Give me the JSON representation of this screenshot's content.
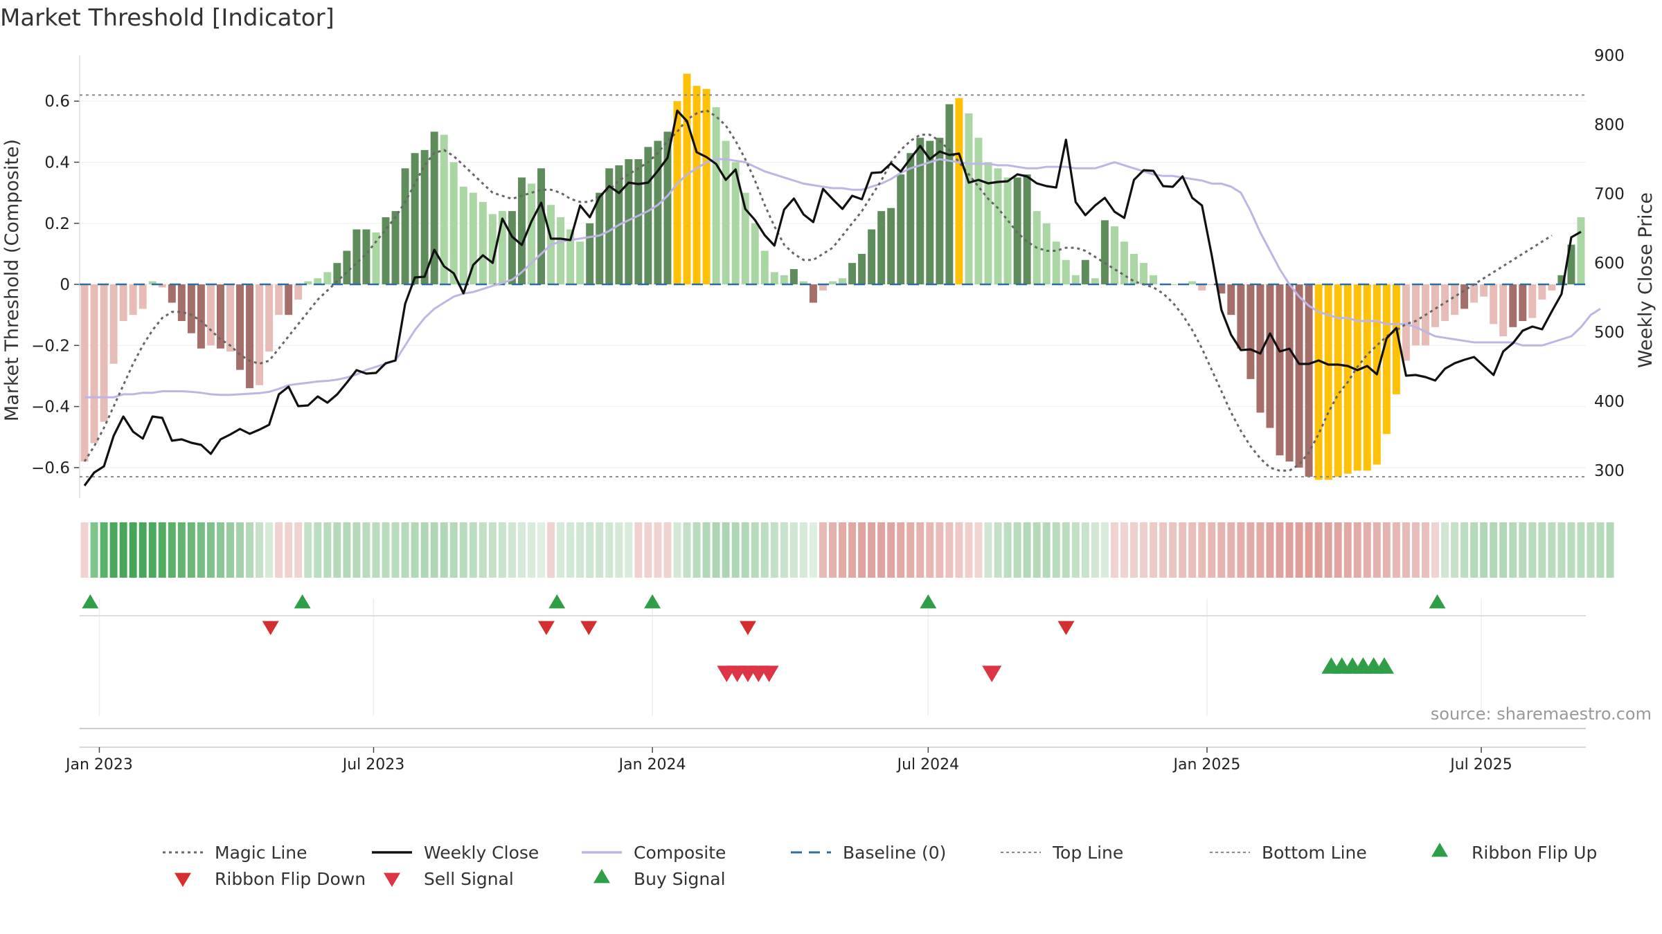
{
  "title": "Market Threshold [Indicator]",
  "source": "source: sharemaestro.com",
  "colors": {
    "pos_strong": "#5e8c5a",
    "pos_light": "#a9d6a2",
    "neg_strong": "#a56e69",
    "neg_light": "#e8bcb6",
    "extreme": "#ffc107",
    "magic_line": "#666666",
    "weekly_close": "#111111",
    "composite": "#bdb6e4",
    "baseline": "#2c6f9e",
    "buy": "#2e9e47",
    "sell": "#dc3545",
    "flip_down": "#d32f2f",
    "flip_up": "#2e9e47"
  },
  "chart_data": {
    "type": "bar",
    "title": "Market Threshold [Indicator]",
    "ylabel": "Market Threshold (Composite)",
    "y2label": "Weekly Close Price",
    "ylim": [
      -0.7,
      0.75
    ],
    "y2lim": [
      260,
      900
    ],
    "yticks": [
      -0.6,
      -0.4,
      -0.2,
      0,
      0.2,
      0.4,
      0.6
    ],
    "ytick_labels": [
      "−0.6",
      "−0.4",
      "−0.2",
      "0",
      "0.2",
      "0.4",
      "0.6"
    ],
    "y2ticks": [
      300,
      400,
      500,
      600,
      700,
      800,
      900
    ],
    "y2tick_labels": [
      "300",
      "400",
      "500",
      "600",
      "700",
      "800",
      "900"
    ],
    "x_start": "2022-12-19",
    "x_end": "2025-09-08",
    "xticks": [
      "2023-01-01",
      "2023-07-01",
      "2024-01-01",
      "2024-07-01",
      "2025-01-01",
      "2025-07-01"
    ],
    "xtick_labels": [
      "Jan 2023",
      "Jul 2023",
      "Jan 2024",
      "Jul 2024",
      "Jan 2025",
      "Jul 2025"
    ],
    "top_line": 0.62,
    "bottom_line": -0.63,
    "baseline": 0,
    "composite_bars": [
      -0.58,
      -0.52,
      -0.45,
      -0.26,
      -0.12,
      -0.1,
      -0.08,
      0.01,
      -0.01,
      -0.06,
      -0.12,
      -0.16,
      -0.21,
      -0.2,
      -0.21,
      -0.22,
      -0.28,
      -0.34,
      -0.33,
      -0.22,
      -0.1,
      -0.1,
      -0.05,
      0.01,
      0.02,
      0.04,
      0.07,
      0.11,
      0.18,
      0.18,
      0.17,
      0.22,
      0.24,
      0.38,
      0.43,
      0.44,
      0.5,
      0.49,
      0.4,
      0.32,
      0.3,
      0.27,
      0.23,
      0.24,
      0.24,
      0.35,
      0.33,
      0.38,
      0.26,
      0.22,
      0.18,
      0.14,
      0.2,
      0.3,
      0.38,
      0.39,
      0.41,
      0.41,
      0.45,
      0.47,
      0.5,
      0.6,
      0.69,
      0.65,
      0.64,
      0.58,
      0.47,
      0.4,
      0.3,
      0.2,
      0.11,
      0.04,
      0.03,
      0.05,
      0.01,
      -0.06,
      -0.02,
      0.01,
      0.02,
      0.07,
      0.1,
      0.18,
      0.24,
      0.25,
      0.36,
      0.43,
      0.48,
      0.47,
      0.48,
      0.59,
      0.61,
      0.56,
      0.48,
      0.4,
      0.38,
      0.35,
      0.35,
      0.36,
      0.24,
      0.2,
      0.14,
      0.08,
      0.03,
      0.08,
      0.02,
      0.21,
      0.19,
      0.14,
      0.1,
      0.07,
      0.03,
      0,
      0,
      0,
      0.01,
      -0.02,
      0,
      -0.03,
      -0.1,
      -0.21,
      -0.31,
      -0.42,
      -0.47,
      -0.56,
      -0.58,
      -0.6,
      -0.63,
      -0.64,
      -0.64,
      -0.63,
      -0.62,
      -0.61,
      -0.61,
      -0.59,
      -0.49,
      -0.36,
      -0.25,
      -0.2,
      -0.2,
      -0.14,
      -0.12,
      -0.1,
      -0.08,
      -0.06,
      -0.04,
      -0.13,
      -0.17,
      -0.14,
      -0.12,
      -0.11,
      -0.05,
      -0.02,
      0.03,
      0.13,
      0.22
    ],
    "bar_class": [
      "nl",
      "nl",
      "nl",
      "nl",
      "nl",
      "nl",
      "nl",
      "pl",
      "nl",
      "ns",
      "ns",
      "ns",
      "ns",
      "nl",
      "ns",
      "nl",
      "ns",
      "ns",
      "nl",
      "nl",
      "nl",
      "ns",
      "nl",
      "pl",
      "pl",
      "pl",
      "ps",
      "ps",
      "ps",
      "ps",
      "pl",
      "ps",
      "ps",
      "ps",
      "ps",
      "ps",
      "ps",
      "pl",
      "pl",
      "pl",
      "pl",
      "pl",
      "pl",
      "pl",
      "ps",
      "ps",
      "pl",
      "ps",
      "pl",
      "pl",
      "pl",
      "pl",
      "ps",
      "ps",
      "ps",
      "ps",
      "ps",
      "ps",
      "ps",
      "ps",
      "ps",
      "e",
      "e",
      "e",
      "e",
      "pl",
      "pl",
      "pl",
      "pl",
      "pl",
      "pl",
      "pl",
      "pl",
      "ps",
      "pl",
      "ns",
      "nl",
      "pl",
      "pl",
      "ps",
      "ps",
      "ps",
      "ps",
      "ps",
      "ps",
      "ps",
      "ps",
      "ps",
      "ps",
      "ps",
      "e",
      "pl",
      "pl",
      "pl",
      "pl",
      "pl",
      "ps",
      "ps",
      "pl",
      "pl",
      "pl",
      "pl",
      "pl",
      "ps",
      "pl",
      "ps",
      "pl",
      "pl",
      "pl",
      "pl",
      "pl",
      "pl",
      "pl",
      "pl",
      "pl",
      "nl",
      "nl",
      "ns",
      "ns",
      "ns",
      "ns",
      "ns",
      "ns",
      "ns",
      "ns",
      "ns",
      "ns",
      "e",
      "e",
      "e",
      "e",
      "e",
      "e",
      "e",
      "e",
      "e",
      "nl",
      "nl",
      "nl",
      "nl",
      "nl",
      "nl",
      "ns",
      "nl",
      "nl",
      "nl",
      "nl",
      "ns",
      "ns",
      "nl",
      "nl",
      "nl",
      "ps",
      "ps",
      "pl",
      "pl",
      "ps"
    ],
    "series": [
      {
        "name": "Magic Line",
        "axis": "left",
        "values": [
          -0.58,
          -0.53,
          -0.47,
          -0.4,
          -0.33,
          -0.26,
          -0.2,
          -0.15,
          -0.11,
          -0.09,
          -0.09,
          -0.1,
          -0.12,
          -0.15,
          -0.18,
          -0.2,
          -0.23,
          -0.25,
          -0.26,
          -0.25,
          -0.21,
          -0.17,
          -0.13,
          -0.09,
          -0.05,
          -0.02,
          0.01,
          0.04,
          0.07,
          0.1,
          0.14,
          0.18,
          0.22,
          0.27,
          0.33,
          0.39,
          0.43,
          0.44,
          0.42,
          0.39,
          0.36,
          0.33,
          0.3,
          0.29,
          0.28,
          0.29,
          0.3,
          0.31,
          0.31,
          0.3,
          0.28,
          0.27,
          0.27,
          0.29,
          0.31,
          0.34,
          0.36,
          0.38,
          0.4,
          0.43,
          0.47,
          0.5,
          0.54,
          0.56,
          0.57,
          0.55,
          0.52,
          0.47,
          0.41,
          0.34,
          0.26,
          0.19,
          0.13,
          0.1,
          0.08,
          0.08,
          0.1,
          0.12,
          0.16,
          0.2,
          0.24,
          0.29,
          0.34,
          0.4,
          0.44,
          0.47,
          0.49,
          0.49,
          0.47,
          0.44,
          0.4,
          0.36,
          0.32,
          0.28,
          0.25,
          0.21,
          0.17,
          0.14,
          0.12,
          0.11,
          0.11,
          0.12,
          0.12,
          0.11,
          0.09,
          0.07,
          0.05,
          0.03,
          0.01,
          0,
          -0.01,
          -0.03,
          -0.06,
          -0.1,
          -0.15,
          -0.21,
          -0.28,
          -0.35,
          -0.42,
          -0.48,
          -0.53,
          -0.57,
          -0.6,
          -0.61,
          -0.61,
          -0.59,
          -0.55,
          -0.49,
          -0.42,
          -0.36,
          -0.32,
          -0.27,
          -0.23,
          -0.2,
          -0.17,
          -0.15,
          -0.13,
          -0.12,
          -0.1,
          -0.08,
          -0.06,
          -0.04,
          -0.02,
          0,
          0.02,
          0.04,
          0.06,
          0.08,
          0.1,
          0.12,
          0.14,
          0.16
        ]
      },
      {
        "name": "Weekly Close",
        "axis": "right",
        "values": [
          278,
          297,
          306,
          350,
          378,
          356,
          346,
          378,
          376,
          343,
          345,
          340,
          337,
          324,
          345,
          352,
          360,
          353,
          359,
          366,
          410,
          421,
          393,
          394,
          407,
          398,
          410,
          427,
          445,
          440,
          441,
          455,
          459,
          541,
          579,
          580,
          619,
          595,
          585,
          556,
          597,
          611,
          600,
          664,
          638,
          626,
          660,
          687,
          635,
          635,
          633,
          683,
          666,
          695,
          711,
          701,
          716,
          714,
          716,
          733,
          752,
          820,
          805,
          760,
          753,
          743,
          720,
          735,
          678,
          662,
          640,
          625,
          677,
          693,
          670,
          659,
          707,
          692,
          678,
          697,
          692,
          730,
          731,
          744,
          732,
          751,
          769,
          750,
          761,
          756,
          758,
          716,
          720,
          715,
          717,
          718,
          728,
          725,
          715,
          711,
          709,
          778,
          688,
          669,
          683,
          694,
          674,
          665,
          720,
          734,
          733,
          711,
          710,
          725,
          694,
          683,
          611,
          532,
          496,
          474,
          475,
          469,
          498,
          472,
          476,
          454,
          454,
          459,
          453,
          453,
          451,
          445,
          451,
          439,
          491,
          506,
          437,
          438,
          435,
          430,
          447,
          455,
          460,
          464,
          451,
          438,
          472,
          484,
          502,
          508,
          504,
          530,
          555,
          637,
          645
        ]
      },
      {
        "name": "Composite",
        "axis": "left",
        "values": [
          -0.37,
          -0.37,
          -0.37,
          -0.37,
          -0.36,
          -0.36,
          -0.355,
          -0.355,
          -0.35,
          -0.35,
          -0.35,
          -0.352,
          -0.355,
          -0.36,
          -0.362,
          -0.362,
          -0.36,
          -0.358,
          -0.356,
          -0.352,
          -0.342,
          -0.33,
          -0.326,
          -0.322,
          -0.318,
          -0.316,
          -0.312,
          -0.305,
          -0.295,
          -0.28,
          -0.27,
          -0.26,
          -0.25,
          -0.2,
          -0.15,
          -0.11,
          -0.08,
          -0.06,
          -0.04,
          -0.03,
          -0.025,
          -0.015,
          -0.005,
          0.005,
          0.015,
          0.04,
          0.07,
          0.1,
          0.13,
          0.14,
          0.145,
          0.15,
          0.155,
          0.16,
          0.175,
          0.195,
          0.21,
          0.225,
          0.24,
          0.26,
          0.29,
          0.33,
          0.36,
          0.38,
          0.4,
          0.41,
          0.41,
          0.405,
          0.4,
          0.385,
          0.37,
          0.36,
          0.35,
          0.34,
          0.33,
          0.325,
          0.32,
          0.315,
          0.315,
          0.31,
          0.31,
          0.32,
          0.33,
          0.345,
          0.365,
          0.38,
          0.39,
          0.4,
          0.41,
          0.405,
          0.4,
          0.395,
          0.395,
          0.395,
          0.39,
          0.39,
          0.385,
          0.38,
          0.38,
          0.385,
          0.385,
          0.385,
          0.38,
          0.38,
          0.38,
          0.39,
          0.4,
          0.39,
          0.38,
          0.37,
          0.36,
          0.355,
          0.355,
          0.35,
          0.345,
          0.34,
          0.33,
          0.33,
          0.32,
          0.3,
          0.24,
          0.17,
          0.11,
          0.05,
          0.0,
          -0.04,
          -0.07,
          -0.09,
          -0.1,
          -0.11,
          -0.11,
          -0.12,
          -0.12,
          -0.12,
          -0.13,
          -0.13,
          -0.13,
          -0.14,
          -0.155,
          -0.17,
          -0.175,
          -0.18,
          -0.185,
          -0.19,
          -0.19,
          -0.19,
          -0.19,
          -0.19,
          -0.2,
          -0.2,
          -0.2,
          -0.19,
          -0.18,
          -0.17,
          -0.14,
          -0.1,
          -0.08
        ]
      }
    ],
    "ribbon": [
      "#f0d2d0",
      "#7fc48a",
      "#58b268",
      "#4aa85c",
      "#48a75a",
      "#46a657",
      "#48a75a",
      "#4caa5e",
      "#52ad63",
      "#5bb06a",
      "#62b470",
      "#6cb879",
      "#76bd82",
      "#7fc18a",
      "#8bc794",
      "#96cc9f",
      "#a3d2aa",
      "#b3d9b8",
      "#c5e1c8",
      "#d6ead8",
      "#f0d2d0",
      "#f0d2d0",
      "#f0d2d0",
      "#c3e1c7",
      "#bcdec0",
      "#b7dbbb",
      "#b5dab9",
      "#b3d9b7",
      "#b5dab9",
      "#b7dbbb",
      "#b8dcbc",
      "#b8dcbc",
      "#b8dcbc",
      "#b5dab9",
      "#b1d8b5",
      "#aed7b3",
      "#afd7b4",
      "#b1d8b5",
      "#b4d9b8",
      "#b8dcbc",
      "#bcdec0",
      "#c0dfc3",
      "#c4e1c7",
      "#c9e4cc",
      "#cfe7d2",
      "#d4e9d7",
      "#d9ecdc",
      "#dff0e2",
      "#f0d2d0",
      "#d6eada",
      "#d2e8d6",
      "#cfe7d3",
      "#cde6d1",
      "#cde6d1",
      "#cfe7d3",
      "#d3e9d6",
      "#d9ecdc",
      "#f0d2d0",
      "#f0d2d0",
      "#f0d2d0",
      "#f0d2d0",
      "#d3e9d6",
      "#c4e1c7",
      "#b8dcbc",
      "#b0d8b5",
      "#acd6b1",
      "#acd6b1",
      "#aed7b3",
      "#b2d9b7",
      "#b7dbbb",
      "#bcdec0",
      "#c2e0c5",
      "#c8e3cb",
      "#cfe7d2",
      "#d6eada",
      "#ddefdf",
      "#e8b9b5",
      "#e5b1ac",
      "#e3aba6",
      "#e1a7a2",
      "#e0a4a0",
      "#dfa39f",
      "#dfa39f",
      "#e0a5a1",
      "#e2a9a4",
      "#e4ada8",
      "#e6b2ad",
      "#e8b7b2",
      "#eabcb8",
      "#ecc2be",
      "#eec8c4",
      "#f0ceca",
      "#f2d4d1",
      "#cfe7d2",
      "#c4e1c7",
      "#bcdec0",
      "#b7dbbb",
      "#b4d9b8",
      "#b3d9b7",
      "#b4d9b8",
      "#b7dbbb",
      "#bbddbe",
      "#c1e0c4",
      "#c8e3cb",
      "#d0e7d3",
      "#d8ecdb",
      "#f0d2d0",
      "#f0d4d1",
      "#efd0cd",
      "#eecdca",
      "#edcac6",
      "#ecc6c2",
      "#ebc3bf",
      "#eac0bc",
      "#e9bdb9",
      "#e8bab6",
      "#e7b7b3",
      "#e6b4b0",
      "#e5b1ad",
      "#e4aeaa",
      "#e3aba7",
      "#e2a8a4",
      "#e1a5a1",
      "#e0a29e",
      "#df9f9b",
      "#df9e9a",
      "#df9e9a",
      "#dfa09c",
      "#e0a29e",
      "#e1a5a1",
      "#e2a8a4",
      "#e3aba7",
      "#e4aeaa",
      "#e5b1ad",
      "#e6b4b0",
      "#e7b7b3",
      "#e8bab6",
      "#e9bdb9",
      "#eac0bc",
      "#f0d2d0",
      "#cfe7d2",
      "#c5e1c8",
      "#bcdec0",
      "#b5dab9",
      "#b1d8b5",
      "#b0d8b5",
      "#b1d8b5",
      "#b3d9b7",
      "#b5dab9",
      "#b7dbbb",
      "#b8dcbc",
      "#b8dcbc",
      "#b8dcbc",
      "#b8dcbc",
      "#b8dcbc",
      "#b8dcbc",
      "#b6dbba",
      "#b2d9b6"
    ],
    "ribbon_flip_up": [
      "2022-12-26",
      "2023-05-15",
      "2023-10-30",
      "2024-01-01",
      "2024-07-01",
      "2025-06-02"
    ],
    "ribbon_flip_down": [
      "2023-04-24",
      "2023-10-23",
      "2023-11-20",
      "2024-03-04",
      "2024-09-30"
    ],
    "sell_signal": [
      "2024-02-19",
      "2024-02-26",
      "2024-03-04",
      "2024-03-11",
      "2024-03-18",
      "2024-08-12"
    ],
    "buy_signal": [
      "2025-03-24",
      "2025-03-31",
      "2025-04-07",
      "2025-04-14",
      "2025-04-21",
      "2025-04-28"
    ],
    "legend": [
      {
        "name": "Magic Line",
        "kind": "dotted",
        "color": "#666666"
      },
      {
        "name": "Weekly Close",
        "kind": "solid",
        "color": "#111111"
      },
      {
        "name": "Composite",
        "kind": "solid",
        "color": "#bdb6e4"
      },
      {
        "name": "Baseline (0)",
        "kind": "dashed",
        "color": "#2c6f9e"
      },
      {
        "name": "Top Line",
        "kind": "dotted-light",
        "color": "#888888"
      },
      {
        "name": "Bottom Line",
        "kind": "dotted-light",
        "color": "#888888"
      },
      {
        "name": "Ribbon Flip Up",
        "kind": "tri-up",
        "color": "#2e9e47"
      },
      {
        "name": "Ribbon Flip Down",
        "kind": "tri-down",
        "color": "#d32f2f"
      },
      {
        "name": "Sell Signal",
        "kind": "tri-down",
        "color": "#dc3545"
      },
      {
        "name": "Buy Signal",
        "kind": "tri-up",
        "color": "#2e9e47"
      }
    ],
    "legend_placement": "bottom",
    "grid": true
  }
}
